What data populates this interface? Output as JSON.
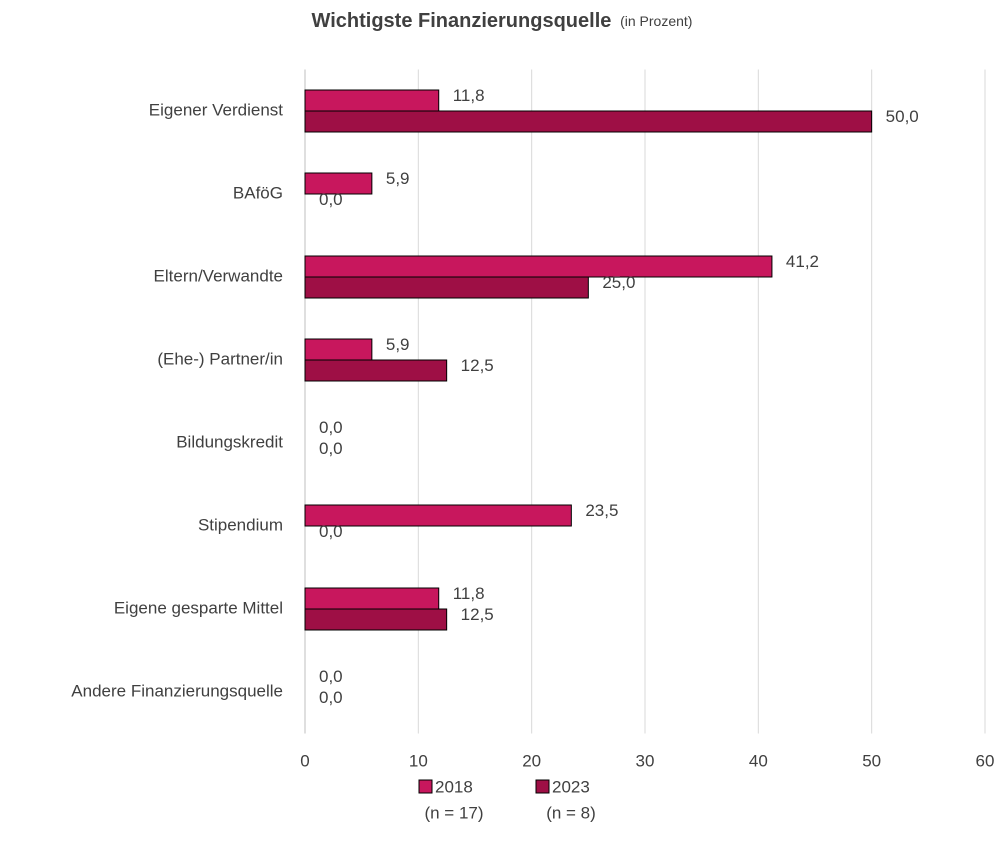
{
  "chart_data": {
    "type": "hbar",
    "title": "Wichtigste Finanzierungsquelle",
    "subtitle": "(in Prozent)",
    "categories": [
      "Eigener Verdienst",
      "BAföG",
      "Eltern/Verwandte",
      "(Ehe-) Partner/in",
      "Bildungskredit",
      "Stipendium",
      "Eigene gesparte Mittel",
      "Andere Finanzierungsquelle"
    ],
    "series": [
      {
        "name": "2018",
        "sample": "(n = 17)",
        "color": "#c8175d",
        "values": [
          11.8,
          5.9,
          41.2,
          5.9,
          0,
          23.5,
          11.8,
          0
        ],
        "value_labels": [
          "11,8",
          "5,9",
          "41,2",
          "5,9",
          "0,0",
          "23,5",
          "11,8",
          "0,0"
        ]
      },
      {
        "name": "2023",
        "sample": "(n = 8)",
        "color": "#9e0f45",
        "values": [
          50,
          0,
          25,
          12.5,
          0,
          0,
          12.5,
          0
        ],
        "value_labels": [
          "50,0",
          "0,0",
          "25,0",
          "12,5",
          "0,0",
          "0,0",
          "12,5",
          "0,0"
        ]
      }
    ],
    "xlim": [
      0,
      60
    ],
    "xticks": [
      0,
      10,
      20,
      30,
      40,
      50,
      60
    ],
    "grid": true,
    "legend": "bottom"
  }
}
